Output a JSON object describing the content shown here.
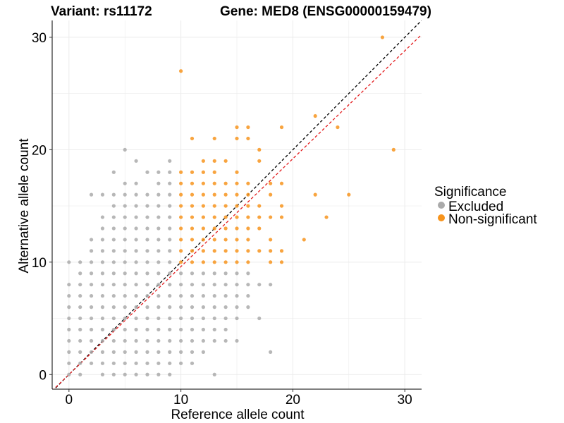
{
  "header": {
    "variant_title": "Variant: rs11172",
    "gene_title": "Gene: MED8 (ENSG00000159479)"
  },
  "chart_data": {
    "type": "scatter",
    "xlabel": "Reference allele count",
    "ylabel": "Alternative allele count",
    "xlim": [
      -1.5,
      31.5
    ],
    "ylim": [
      -1.3,
      31.5
    ],
    "xticks": [
      0,
      10,
      20,
      30
    ],
    "yticks": [
      0,
      10,
      20,
      30
    ],
    "grid": true,
    "legend": {
      "title": "Significance",
      "placement": "right",
      "entries": [
        {
          "label": "Excluded",
          "color": "#aaaaaa"
        },
        {
          "label": "Non-significant",
          "color": "#f7941d"
        }
      ]
    },
    "reference_lines": [
      {
        "style": "dashed",
        "color": "#000000",
        "slope": 1.0,
        "intercept": 0
      },
      {
        "style": "dashed",
        "color": "#e31a1c",
        "slope": 0.96,
        "intercept": 0
      }
    ],
    "series": [
      {
        "name": "Excluded",
        "color": "#aaaaaa",
        "points": [
          [
            0,
            0
          ],
          [
            0,
            1
          ],
          [
            0,
            2
          ],
          [
            0,
            3
          ],
          [
            0,
            4
          ],
          [
            0,
            5
          ],
          [
            0,
            6
          ],
          [
            0,
            7
          ],
          [
            0,
            8
          ],
          [
            0,
            10
          ],
          [
            1,
            0
          ],
          [
            1,
            1
          ],
          [
            1,
            2
          ],
          [
            1,
            3
          ],
          [
            1,
            4
          ],
          [
            1,
            5
          ],
          [
            1,
            6
          ],
          [
            1,
            7
          ],
          [
            1,
            8
          ],
          [
            1,
            9
          ],
          [
            1,
            10
          ],
          [
            2,
            1
          ],
          [
            2,
            2
          ],
          [
            2,
            3
          ],
          [
            2,
            4
          ],
          [
            2,
            5
          ],
          [
            2,
            6
          ],
          [
            2,
            7
          ],
          [
            2,
            8
          ],
          [
            2,
            9
          ],
          [
            2,
            10
          ],
          [
            2,
            11
          ],
          [
            2,
            12
          ],
          [
            2,
            16
          ],
          [
            3,
            0
          ],
          [
            3,
            1
          ],
          [
            3,
            2
          ],
          [
            3,
            3
          ],
          [
            3,
            4
          ],
          [
            3,
            5
          ],
          [
            3,
            6
          ],
          [
            3,
            7
          ],
          [
            3,
            8
          ],
          [
            3,
            9
          ],
          [
            3,
            10
          ],
          [
            3,
            11
          ],
          [
            3,
            12
          ],
          [
            3,
            13
          ],
          [
            3,
            14
          ],
          [
            3,
            16
          ],
          [
            4,
            0
          ],
          [
            4,
            1
          ],
          [
            4,
            2
          ],
          [
            4,
            3
          ],
          [
            4,
            4
          ],
          [
            4,
            5
          ],
          [
            4,
            6
          ],
          [
            4,
            7
          ],
          [
            4,
            8
          ],
          [
            4,
            9
          ],
          [
            4,
            10
          ],
          [
            4,
            11
          ],
          [
            4,
            12
          ],
          [
            4,
            13
          ],
          [
            4,
            14
          ],
          [
            4,
            15
          ],
          [
            4,
            16
          ],
          [
            4,
            18
          ],
          [
            5,
            0
          ],
          [
            5,
            1
          ],
          [
            5,
            2
          ],
          [
            5,
            3
          ],
          [
            5,
            4
          ],
          [
            5,
            5
          ],
          [
            5,
            6
          ],
          [
            5,
            7
          ],
          [
            5,
            8
          ],
          [
            5,
            9
          ],
          [
            5,
            10
          ],
          [
            5,
            11
          ],
          [
            5,
            12
          ],
          [
            5,
            13
          ],
          [
            5,
            14
          ],
          [
            5,
            15
          ],
          [
            5,
            16
          ],
          [
            5,
            17
          ],
          [
            5,
            20
          ],
          [
            6,
            0
          ],
          [
            6,
            1
          ],
          [
            6,
            2
          ],
          [
            6,
            3
          ],
          [
            6,
            4
          ],
          [
            6,
            5
          ],
          [
            6,
            6
          ],
          [
            6,
            7
          ],
          [
            6,
            8
          ],
          [
            6,
            9
          ],
          [
            6,
            10
          ],
          [
            6,
            11
          ],
          [
            6,
            12
          ],
          [
            6,
            13
          ],
          [
            6,
            14
          ],
          [
            6,
            15
          ],
          [
            6,
            16
          ],
          [
            6,
            17
          ],
          [
            6,
            19
          ],
          [
            7,
            0
          ],
          [
            7,
            1
          ],
          [
            7,
            2
          ],
          [
            7,
            3
          ],
          [
            7,
            4
          ],
          [
            7,
            5
          ],
          [
            7,
            6
          ],
          [
            7,
            7
          ],
          [
            7,
            8
          ],
          [
            7,
            9
          ],
          [
            7,
            10
          ],
          [
            7,
            11
          ],
          [
            7,
            12
          ],
          [
            7,
            13
          ],
          [
            7,
            14
          ],
          [
            7,
            15
          ],
          [
            7,
            16
          ],
          [
            7,
            18
          ],
          [
            8,
            0
          ],
          [
            8,
            1
          ],
          [
            8,
            2
          ],
          [
            8,
            3
          ],
          [
            8,
            4
          ],
          [
            8,
            5
          ],
          [
            8,
            6
          ],
          [
            8,
            7
          ],
          [
            8,
            8
          ],
          [
            8,
            9
          ],
          [
            8,
            10
          ],
          [
            8,
            11
          ],
          [
            8,
            12
          ],
          [
            8,
            13
          ],
          [
            8,
            14
          ],
          [
            8,
            15
          ],
          [
            8,
            16
          ],
          [
            8,
            17
          ],
          [
            8,
            18
          ],
          [
            9,
            0
          ],
          [
            9,
            1
          ],
          [
            9,
            2
          ],
          [
            9,
            3
          ],
          [
            9,
            4
          ],
          [
            9,
            5
          ],
          [
            9,
            6
          ],
          [
            9,
            7
          ],
          [
            9,
            8
          ],
          [
            9,
            9
          ],
          [
            9,
            10
          ],
          [
            9,
            11
          ],
          [
            9,
            12
          ],
          [
            9,
            13
          ],
          [
            9,
            14
          ],
          [
            9,
            15
          ],
          [
            9,
            16
          ],
          [
            9,
            17
          ],
          [
            9,
            18
          ],
          [
            9,
            19
          ],
          [
            10,
            1
          ],
          [
            10,
            2
          ],
          [
            10,
            3
          ],
          [
            10,
            4
          ],
          [
            10,
            5
          ],
          [
            10,
            6
          ],
          [
            10,
            7
          ],
          [
            10,
            8
          ],
          [
            10,
            9
          ],
          [
            11,
            1
          ],
          [
            11,
            2
          ],
          [
            11,
            3
          ],
          [
            11,
            4
          ],
          [
            11,
            5
          ],
          [
            11,
            6
          ],
          [
            11,
            7
          ],
          [
            11,
            8
          ],
          [
            11,
            9
          ],
          [
            12,
            2
          ],
          [
            12,
            3
          ],
          [
            12,
            4
          ],
          [
            12,
            5
          ],
          [
            12,
            6
          ],
          [
            12,
            7
          ],
          [
            12,
            8
          ],
          [
            12,
            9
          ],
          [
            13,
            0
          ],
          [
            13,
            3
          ],
          [
            13,
            4
          ],
          [
            13,
            5
          ],
          [
            13,
            6
          ],
          [
            13,
            7
          ],
          [
            13,
            8
          ],
          [
            13,
            9
          ],
          [
            14,
            3
          ],
          [
            14,
            4
          ],
          [
            14,
            5
          ],
          [
            14,
            6
          ],
          [
            14,
            7
          ],
          [
            14,
            8
          ],
          [
            14,
            9
          ],
          [
            15,
            3
          ],
          [
            15,
            5
          ],
          [
            15,
            6
          ],
          [
            15,
            7
          ],
          [
            15,
            8
          ],
          [
            15,
            9
          ],
          [
            16,
            6
          ],
          [
            16,
            7
          ],
          [
            16,
            8
          ],
          [
            16,
            9
          ],
          [
            17,
            5
          ],
          [
            17,
            8
          ],
          [
            18,
            2
          ],
          [
            18,
            8
          ]
        ]
      },
      {
        "name": "Non-significant",
        "color": "#f7941d",
        "points": [
          [
            10,
            10
          ],
          [
            10,
            11
          ],
          [
            10,
            12
          ],
          [
            10,
            13
          ],
          [
            10,
            14
          ],
          [
            10,
            15
          ],
          [
            10,
            16
          ],
          [
            10,
            17
          ],
          [
            10,
            18
          ],
          [
            10,
            27
          ],
          [
            11,
            10
          ],
          [
            11,
            11
          ],
          [
            11,
            12
          ],
          [
            11,
            13
          ],
          [
            11,
            14
          ],
          [
            11,
            15
          ],
          [
            11,
            16
          ],
          [
            11,
            17
          ],
          [
            11,
            18
          ],
          [
            11,
            21
          ],
          [
            12,
            10
          ],
          [
            12,
            11
          ],
          [
            12,
            12
          ],
          [
            12,
            13
          ],
          [
            12,
            14
          ],
          [
            12,
            15
          ],
          [
            12,
            16
          ],
          [
            12,
            17
          ],
          [
            12,
            18
          ],
          [
            12,
            19
          ],
          [
            13,
            10
          ],
          [
            13,
            11
          ],
          [
            13,
            12
          ],
          [
            13,
            13
          ],
          [
            13,
            14
          ],
          [
            13,
            15
          ],
          [
            13,
            16
          ],
          [
            13,
            17
          ],
          [
            13,
            18
          ],
          [
            13,
            19
          ],
          [
            13,
            21
          ],
          [
            14,
            10
          ],
          [
            14,
            11
          ],
          [
            14,
            12
          ],
          [
            14,
            13
          ],
          [
            14,
            14
          ],
          [
            14,
            15
          ],
          [
            14,
            16
          ],
          [
            14,
            17
          ],
          [
            14,
            19
          ],
          [
            15,
            10
          ],
          [
            15,
            11
          ],
          [
            15,
            12
          ],
          [
            15,
            13
          ],
          [
            15,
            14
          ],
          [
            15,
            15
          ],
          [
            15,
            16
          ],
          [
            15,
            17
          ],
          [
            15,
            18
          ],
          [
            15,
            21
          ],
          [
            15,
            22
          ],
          [
            16,
            10
          ],
          [
            16,
            11
          ],
          [
            16,
            12
          ],
          [
            16,
            13
          ],
          [
            16,
            14
          ],
          [
            16,
            15
          ],
          [
            16,
            16
          ],
          [
            16,
            17
          ],
          [
            16,
            21
          ],
          [
            16,
            22
          ],
          [
            17,
            11
          ],
          [
            17,
            13
          ],
          [
            17,
            14
          ],
          [
            17,
            15
          ],
          [
            17,
            19
          ],
          [
            17,
            20
          ],
          [
            18,
            10
          ],
          [
            18,
            11
          ],
          [
            18,
            12
          ],
          [
            18,
            14
          ],
          [
            18,
            16
          ],
          [
            18,
            17
          ],
          [
            19,
            10
          ],
          [
            19,
            11
          ],
          [
            19,
            14
          ],
          [
            19,
            15
          ],
          [
            19,
            17
          ],
          [
            19,
            22
          ],
          [
            21,
            12
          ],
          [
            22,
            16
          ],
          [
            22,
            23
          ],
          [
            23,
            14
          ],
          [
            24,
            22
          ],
          [
            25,
            16
          ],
          [
            28,
            30
          ],
          [
            29,
            20
          ]
        ]
      }
    ]
  }
}
